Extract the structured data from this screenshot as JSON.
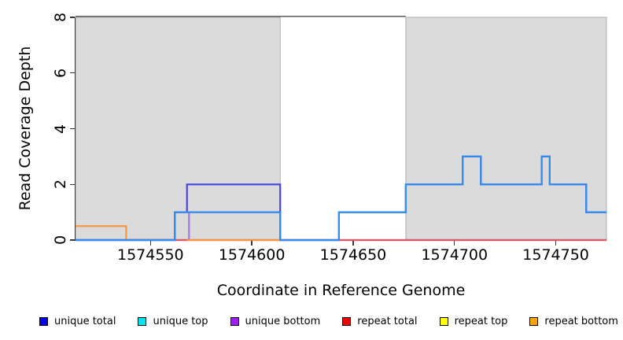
{
  "chart_data": {
    "type": "line",
    "subtype": "step-coverage-plot",
    "title": "",
    "xlabel": "Coordinate in Reference Genome",
    "ylabel": "Read Coverage Depth",
    "xlim": [
      1574513,
      1574775
    ],
    "ylim": [
      0,
      8
    ],
    "x_ticks": [
      "1574550",
      "1574600",
      "1574650",
      "1574700",
      "1574750"
    ],
    "x_tick_values": [
      1574550,
      1574600,
      1574650,
      1574700,
      1574750
    ],
    "y_ticks": [
      "0",
      "2",
      "4",
      "6",
      "8"
    ],
    "y_tick_values": [
      0,
      2,
      4,
      6,
      8
    ],
    "grid": false,
    "background": "#ffffff",
    "shade_fill": "#dbdbdb",
    "shade_border": "#aeaeae",
    "shaded_regions": [
      {
        "x1": 1574513,
        "x2": 1574614
      },
      {
        "x1": 1574676,
        "x2": 1574775
      }
    ],
    "top_rule": {
      "y": 8,
      "x1": 1574513,
      "x2": 1574676,
      "color": "#686868"
    },
    "series": [
      {
        "name": "unique total",
        "line_color": "#4545e6",
        "segments": [
          {
            "points": [
              [
                1574513,
                0
              ],
              [
                1574562,
                1
              ],
              [
                1574568,
                2
              ],
              [
                1574614,
                0
              ],
              [
                1574643,
                1
              ],
              [
                1574676,
                2
              ],
              [
                1574704,
                3
              ],
              [
                1574713,
                2
              ],
              [
                1574743,
                3
              ],
              [
                1574747,
                2
              ],
              [
                1574765,
                1
              ]
            ],
            "end": 1574775
          }
        ]
      },
      {
        "name": "unique bottom",
        "line_color": "#9c79dc",
        "segments": [
          {
            "points": [
              [
                1574513,
                0
              ],
              [
                1574569,
                1
              ],
              [
                1574614,
                0
              ]
            ],
            "end": 1574775
          }
        ]
      },
      {
        "name": "repeat total",
        "line_color": "#dc5a68",
        "segments": [
          {
            "points": [
              [
                1574538,
                0
              ]
            ],
            "end": 1574775
          }
        ]
      },
      {
        "name": "repeat bottom",
        "line_color": "#f6953f",
        "segments": [
          {
            "points": [
              [
                1574513,
                0.5
              ],
              [
                1574538,
                0
              ]
            ],
            "end": 1574538
          },
          {
            "points": [
              [
                1574568,
                0
              ]
            ],
            "end": 1574614
          }
        ]
      },
      {
        "name": "unique top",
        "line_color": "#338bf0",
        "segments": [
          {
            "points": [
              [
                1574513,
                0
              ],
              [
                1574562,
                1
              ],
              [
                1574614,
                0
              ],
              [
                1574643,
                1
              ],
              [
                1574676,
                2
              ],
              [
                1574704,
                3
              ],
              [
                1574713,
                2
              ],
              [
                1574743,
                3
              ],
              [
                1574747,
                2
              ],
              [
                1574765,
                1
              ]
            ],
            "end": 1574775
          }
        ]
      }
    ],
    "legend_position": "bottom",
    "legend": [
      {
        "label": "unique total",
        "color": "#0000ee"
      },
      {
        "label": "unique top",
        "color": "#00e5ee"
      },
      {
        "label": "unique bottom",
        "color": "#a020f0"
      },
      {
        "label": "repeat total",
        "color": "#ee0000"
      },
      {
        "label": "repeat top",
        "color": "#ffff00"
      },
      {
        "label": "repeat bottom",
        "color": "#ffa500"
      }
    ]
  }
}
